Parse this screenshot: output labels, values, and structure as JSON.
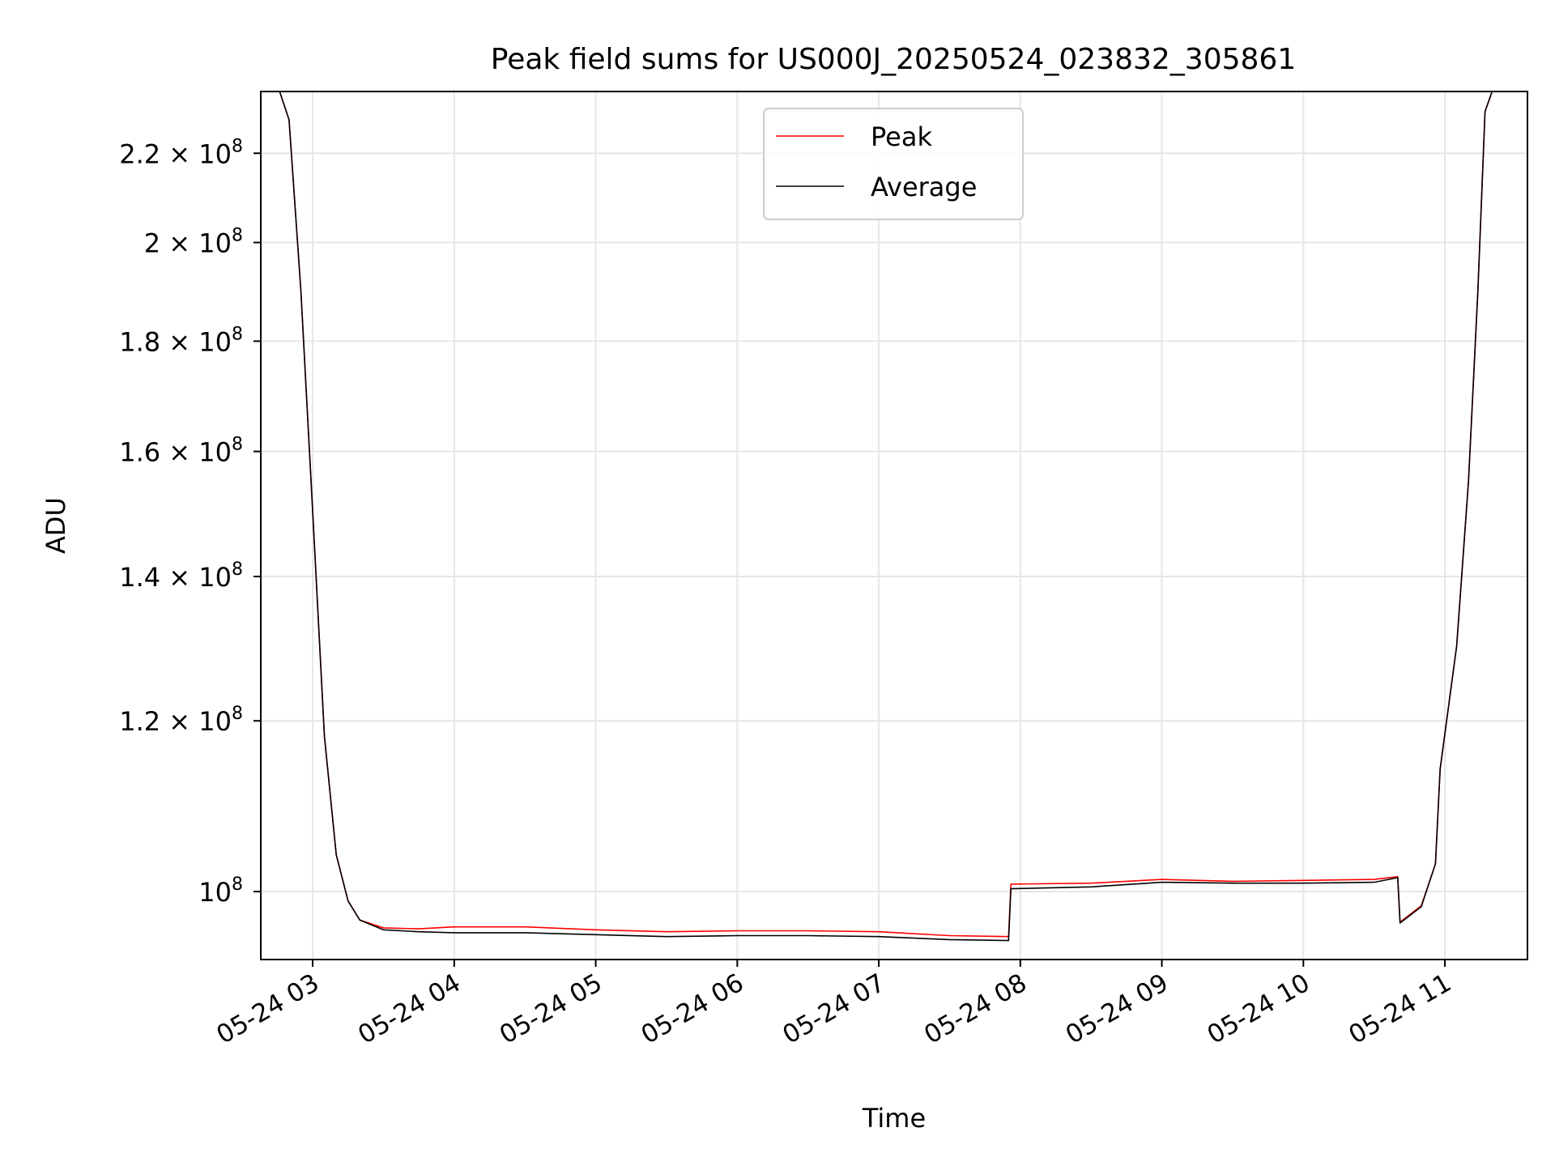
{
  "chart_data": {
    "type": "line",
    "title": "Peak field sums for US000J_20250524_023832_305861",
    "xlabel": "Time",
    "ylabel": "ADU",
    "y_scale": "log",
    "xlim": [
      "2025-05-24T02:38",
      "2025-05-24T11:35"
    ],
    "ylim": [
      93000000,
      235000000
    ],
    "grid": true,
    "legend_position": "top-center",
    "x_ticks": [
      {
        "value": "2025-05-24T03:00",
        "label": "05-24 03"
      },
      {
        "value": "2025-05-24T04:00",
        "label": "05-24 04"
      },
      {
        "value": "2025-05-24T05:00",
        "label": "05-24 05"
      },
      {
        "value": "2025-05-24T06:00",
        "label": "05-24 06"
      },
      {
        "value": "2025-05-24T07:00",
        "label": "05-24 07"
      },
      {
        "value": "2025-05-24T08:00",
        "label": "05-24 08"
      },
      {
        "value": "2025-05-24T09:00",
        "label": "05-24 09"
      },
      {
        "value": "2025-05-24T10:00",
        "label": "05-24 10"
      },
      {
        "value": "2025-05-24T11:00",
        "label": "05-24 11"
      }
    ],
    "y_ticks": [
      {
        "value": 100000000,
        "mantissa": "",
        "exp": "8"
      },
      {
        "value": 120000000,
        "mantissa": "1.2",
        "exp": "8"
      },
      {
        "value": 140000000,
        "mantissa": "1.4",
        "exp": "8"
      },
      {
        "value": 160000000,
        "mantissa": "1.6",
        "exp": "8"
      },
      {
        "value": 180000000,
        "mantissa": "1.8",
        "exp": "8"
      },
      {
        "value": 200000000,
        "mantissa": "2",
        "exp": "8"
      },
      {
        "value": 220000000,
        "mantissa": "2.2",
        "exp": "8"
      }
    ],
    "series": [
      {
        "name": "Peak",
        "color": "#ff0000",
        "points": [
          [
            "2025-05-24T02:38",
            235000000
          ],
          [
            "2025-05-24T02:46",
            235000000
          ],
          [
            "2025-05-24T02:50",
            228000000
          ],
          [
            "2025-05-24T02:55",
            190000000
          ],
          [
            "2025-05-24T03:00",
            150000000
          ],
          [
            "2025-05-24T03:05",
            118000000
          ],
          [
            "2025-05-24T03:10",
            104000000
          ],
          [
            "2025-05-24T03:15",
            99000000
          ],
          [
            "2025-05-24T03:20",
            97000000
          ],
          [
            "2025-05-24T03:30",
            96200000
          ],
          [
            "2025-05-24T03:45",
            96100000
          ],
          [
            "2025-05-24T04:00",
            96300000
          ],
          [
            "2025-05-24T04:30",
            96300000
          ],
          [
            "2025-05-24T05:00",
            96000000
          ],
          [
            "2025-05-24T05:30",
            95800000
          ],
          [
            "2025-05-24T06:00",
            95900000
          ],
          [
            "2025-05-24T06:30",
            95900000
          ],
          [
            "2025-05-24T07:00",
            95800000
          ],
          [
            "2025-05-24T07:30",
            95400000
          ],
          [
            "2025-05-24T07:55",
            95300000
          ],
          [
            "2025-05-24T07:56",
            100800000
          ],
          [
            "2025-05-24T08:30",
            100900000
          ],
          [
            "2025-05-24T09:00",
            101300000
          ],
          [
            "2025-05-24T09:30",
            101100000
          ],
          [
            "2025-05-24T10:00",
            101200000
          ],
          [
            "2025-05-24T10:30",
            101300000
          ],
          [
            "2025-05-24T10:40",
            101600000
          ],
          [
            "2025-05-24T10:41",
            96800000
          ],
          [
            "2025-05-24T10:50",
            98500000
          ],
          [
            "2025-05-24T10:56",
            103000000
          ],
          [
            "2025-05-24T10:58",
            114000000
          ],
          [
            "2025-05-24T11:05",
            130000000
          ],
          [
            "2025-05-24T11:10",
            155000000
          ],
          [
            "2025-05-24T11:14",
            190000000
          ],
          [
            "2025-05-24T11:17",
            230000000
          ],
          [
            "2025-05-24T11:20",
            235000000
          ],
          [
            "2025-05-24T11:35",
            235000000
          ]
        ]
      },
      {
        "name": "Average",
        "color": "#000000",
        "points": [
          [
            "2025-05-24T02:38",
            235000000
          ],
          [
            "2025-05-24T02:46",
            235000000
          ],
          [
            "2025-05-24T02:50",
            228000000
          ],
          [
            "2025-05-24T02:55",
            190000000
          ],
          [
            "2025-05-24T03:00",
            150000000
          ],
          [
            "2025-05-24T03:05",
            118000000
          ],
          [
            "2025-05-24T03:10",
            104000000
          ],
          [
            "2025-05-24T03:15",
            99000000
          ],
          [
            "2025-05-24T03:20",
            97000000
          ],
          [
            "2025-05-24T03:30",
            96000000
          ],
          [
            "2025-05-24T03:45",
            95800000
          ],
          [
            "2025-05-24T04:00",
            95700000
          ],
          [
            "2025-05-24T04:30",
            95700000
          ],
          [
            "2025-05-24T05:00",
            95500000
          ],
          [
            "2025-05-24T05:30",
            95300000
          ],
          [
            "2025-05-24T06:00",
            95400000
          ],
          [
            "2025-05-24T06:30",
            95400000
          ],
          [
            "2025-05-24T07:00",
            95300000
          ],
          [
            "2025-05-24T07:30",
            95000000
          ],
          [
            "2025-05-24T07:55",
            94900000
          ],
          [
            "2025-05-24T07:56",
            100300000
          ],
          [
            "2025-05-24T08:30",
            100500000
          ],
          [
            "2025-05-24T09:00",
            101000000
          ],
          [
            "2025-05-24T09:30",
            100900000
          ],
          [
            "2025-05-24T10:00",
            100900000
          ],
          [
            "2025-05-24T10:30",
            101000000
          ],
          [
            "2025-05-24T10:40",
            101500000
          ],
          [
            "2025-05-24T10:41",
            96700000
          ],
          [
            "2025-05-24T10:50",
            98400000
          ],
          [
            "2025-05-24T10:56",
            103000000
          ],
          [
            "2025-05-24T10:58",
            114000000
          ],
          [
            "2025-05-24T11:05",
            130000000
          ],
          [
            "2025-05-24T11:10",
            155000000
          ],
          [
            "2025-05-24T11:14",
            190000000
          ],
          [
            "2025-05-24T11:17",
            230000000
          ],
          [
            "2025-05-24T11:20",
            235000000
          ],
          [
            "2025-05-24T11:35",
            235000000
          ]
        ]
      }
    ]
  }
}
